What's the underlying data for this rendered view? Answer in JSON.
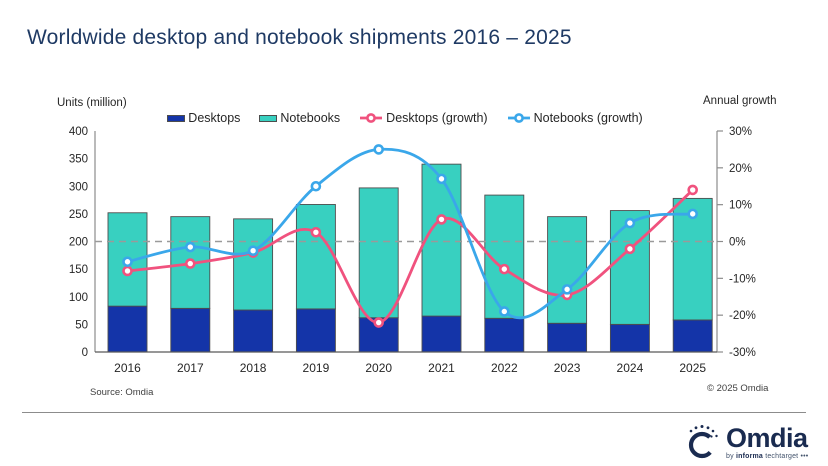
{
  "title": "Worldwide desktop and notebook shipments 2016 – 2025",
  "colors": {
    "title_text": "#1f3a64",
    "desktops_bar": "#1434a8",
    "notebooks_bar": "#38d0c0",
    "desktops_growth_line": "#f0527e",
    "notebooks_growth_line": "#3aa7ea",
    "bar_border": "#4d4d4d",
    "axis_line": "#8c8c8c",
    "bottom_axis_line": "#595959",
    "zero_dash_line": "#9a9a9a",
    "tick_text": "#262626"
  },
  "chart_data": {
    "type": "bar",
    "subtype": "stacked-bars-with-growth-lines",
    "title": "Worldwide desktop and notebook shipments 2016 – 2025",
    "categories": [
      "2016",
      "2017",
      "2018",
      "2019",
      "2020",
      "2021",
      "2022",
      "2023",
      "2024",
      "2025"
    ],
    "series": [
      {
        "name": "Desktops",
        "kind": "bar",
        "axis": "left",
        "color": "#1434a8",
        "values": [
          83,
          79,
          76,
          78,
          62,
          65,
          61,
          52,
          50,
          58
        ]
      },
      {
        "name": "Notebooks",
        "kind": "bar",
        "axis": "left",
        "color": "#38d0c0",
        "values": [
          169,
          166,
          165,
          189,
          235,
          275,
          223,
          193,
          206,
          220
        ]
      },
      {
        "name": "Desktops (growth)",
        "kind": "line",
        "axis": "right",
        "color": "#f0527e",
        "values": [
          -8,
          -6,
          -3,
          2.5,
          -22,
          6,
          -7.5,
          -14.5,
          -2,
          14
        ]
      },
      {
        "name": "Notebooks (growth)",
        "kind": "line",
        "axis": "right",
        "color": "#3aa7ea",
        "values": [
          -5.5,
          -1.5,
          -2.5,
          15,
          25,
          17,
          -19,
          -13,
          5,
          7.5
        ]
      }
    ],
    "stacked_totals": [
      252,
      245,
      241,
      267,
      297,
      340,
      284,
      245,
      256,
      278
    ],
    "left_axis": {
      "label": "Units (million)",
      "min": 0,
      "max": 400,
      "ticks": [
        "0",
        "50",
        "100",
        "150",
        "200",
        "250",
        "300",
        "350",
        "400"
      ]
    },
    "right_axis": {
      "label": "Annual growth",
      "min": -30,
      "max": 30,
      "ticks": [
        "-30%",
        "-20%",
        "-10%",
        "0%",
        "10%",
        "20%",
        "30%"
      ]
    },
    "zero_line": {
      "shown": true,
      "at_percent": 0
    },
    "grid": "off",
    "legend_position": "top-center"
  },
  "legend": {
    "items": [
      {
        "label": "Desktops",
        "marker": "filled-rect",
        "color": "#1434a8"
      },
      {
        "label": "Notebooks",
        "marker": "filled-rect",
        "color": "#38d0c0"
      },
      {
        "label": "Desktops (growth)",
        "marker": "line-ring",
        "color": "#f0527e"
      },
      {
        "label": "Notebooks (growth)",
        "marker": "line-ring",
        "color": "#3aa7ea"
      }
    ]
  },
  "footer": {
    "source": "Source: Omdia",
    "copyright": "© 2025 Omdia"
  },
  "logo": {
    "name": "Omdia",
    "tagline_by": "by",
    "tagline_brand": "informa",
    "tagline_rest": "techtarget •••"
  }
}
